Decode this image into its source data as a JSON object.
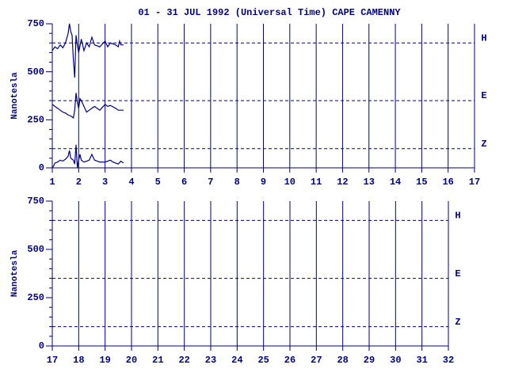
{
  "chart_data": [
    {
      "type": "line",
      "title": "01 - 31 JUL 1992 (Universal Time) CAPE CAMENNY",
      "y_label": "Nanotesla",
      "xlim": [
        1,
        17
      ],
      "xticks": [
        1,
        2,
        3,
        4,
        5,
        6,
        7,
        8,
        9,
        10,
        11,
        12,
        13,
        14,
        15,
        16,
        17
      ],
      "ylim": [
        0,
        750
      ],
      "yticks": [
        0,
        250,
        500,
        750
      ],
      "minor_yticks": [
        50,
        100,
        150,
        200,
        300,
        350,
        400,
        450,
        550,
        600,
        650,
        700
      ],
      "grid": true,
      "color": "#000080",
      "baselines": [
        {
          "label": "H",
          "value": 650
        },
        {
          "label": "E",
          "value": 350
        },
        {
          "label": "Z",
          "value": 100
        }
      ],
      "series": [
        {
          "x": [
            1,
            1.1,
            1.2,
            1.3,
            1.4,
            1.5,
            1.6,
            1.65,
            1.7,
            1.75,
            1.8,
            1.85,
            1.9,
            1.95,
            2.0,
            2.1,
            2.2,
            2.3,
            2.4,
            2.5,
            2.6,
            2.8,
            3.0,
            3.1,
            3.2,
            3.4,
            3.5,
            3.55,
            3.6,
            3.7
          ],
          "values": [
            610,
            630,
            620,
            640,
            625,
            650,
            700,
            750,
            710,
            690,
            560,
            470,
            690,
            640,
            600,
            670,
            610,
            650,
            630,
            680,
            640,
            630,
            660,
            630,
            650,
            640,
            630,
            660,
            640,
            640
          ]
        },
        {
          "x": [
            1,
            1.1,
            1.2,
            1.3,
            1.4,
            1.5,
            1.6,
            1.7,
            1.8,
            1.85,
            1.9,
            1.95,
            2.0,
            2.05,
            2.1,
            2.2,
            2.3,
            2.4,
            2.5,
            2.6,
            2.8,
            3.0,
            3.1,
            3.2,
            3.4,
            3.5,
            3.6,
            3.7
          ],
          "values": [
            330,
            320,
            310,
            300,
            290,
            285,
            275,
            270,
            260,
            300,
            390,
            340,
            310,
            360,
            350,
            320,
            290,
            300,
            310,
            320,
            300,
            330,
            320,
            325,
            310,
            300,
            300,
            300
          ]
        },
        {
          "x": [
            1,
            1.05,
            1.1,
            1.2,
            1.3,
            1.4,
            1.5,
            1.6,
            1.65,
            1.7,
            1.8,
            1.85,
            1.9,
            1.95,
            2.0,
            2.05,
            2.1,
            2.2,
            2.3,
            2.4,
            2.5,
            2.6,
            2.8,
            3.0,
            3.2,
            3.3,
            3.5,
            3.6,
            3.7
          ],
          "values": [
            0,
            10,
            25,
            30,
            40,
            35,
            45,
            60,
            90,
            50,
            40,
            20,
            120,
            0,
            40,
            70,
            40,
            30,
            35,
            40,
            70,
            40,
            30,
            30,
            40,
            30,
            20,
            35,
            25
          ]
        }
      ]
    },
    {
      "type": "line",
      "y_label": "Nanotesla",
      "xlim": [
        17,
        32
      ],
      "xticks": [
        17,
        18,
        19,
        20,
        21,
        22,
        23,
        24,
        25,
        26,
        27,
        28,
        29,
        30,
        31,
        32
      ],
      "ylim": [
        0,
        750
      ],
      "yticks": [
        0,
        250,
        500,
        750
      ],
      "minor_yticks": [
        50,
        100,
        150,
        200,
        300,
        350,
        400,
        450,
        550,
        600,
        650,
        700
      ],
      "grid": true,
      "color": "#000080",
      "baselines": [
        {
          "label": "H",
          "value": 650
        },
        {
          "label": "E",
          "value": 350
        },
        {
          "label": "Z",
          "value": 100
        }
      ],
      "series": []
    }
  ]
}
